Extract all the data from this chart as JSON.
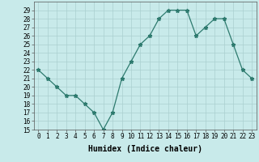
{
  "x": [
    0,
    1,
    2,
    3,
    4,
    5,
    6,
    7,
    8,
    9,
    10,
    11,
    12,
    13,
    14,
    15,
    16,
    17,
    18,
    19,
    20,
    21,
    22,
    23
  ],
  "y": [
    22,
    21,
    20,
    19,
    19,
    18,
    17,
    15,
    17,
    21,
    23,
    25,
    26,
    28,
    29,
    29,
    29,
    26,
    27,
    28,
    28,
    25,
    22,
    21
  ],
  "line_color": "#2d7a6e",
  "marker": "*",
  "marker_size": 3.5,
  "bg_color": "#c8eaea",
  "grid_color": "#aacfcf",
  "xlabel": "Humidex (Indice chaleur)",
  "ylim": [
    15,
    30
  ],
  "xlim_min": -0.5,
  "xlim_max": 23.5,
  "yticks": [
    15,
    16,
    17,
    18,
    19,
    20,
    21,
    22,
    23,
    24,
    25,
    26,
    27,
    28,
    29
  ],
  "xticks": [
    0,
    1,
    2,
    3,
    4,
    5,
    6,
    7,
    8,
    9,
    10,
    11,
    12,
    13,
    14,
    15,
    16,
    17,
    18,
    19,
    20,
    21,
    22,
    23
  ],
  "xtick_labels": [
    "0",
    "1",
    "2",
    "3",
    "4",
    "5",
    "6",
    "7",
    "8",
    "9",
    "10",
    "11",
    "12",
    "13",
    "14",
    "15",
    "16",
    "17",
    "18",
    "19",
    "20",
    "21",
    "22",
    "23"
  ],
  "axis_fontsize": 6.5,
  "tick_fontsize": 5.5,
  "xlabel_fontsize": 7
}
